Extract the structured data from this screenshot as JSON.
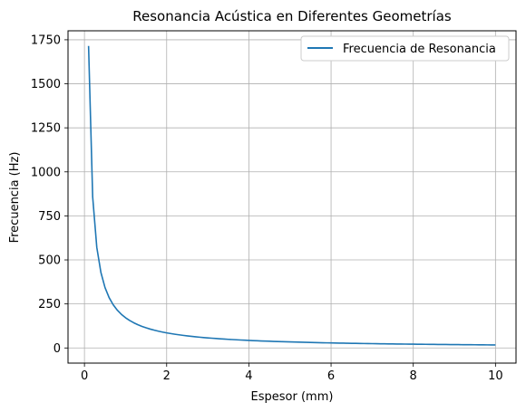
{
  "chart_data": {
    "type": "line",
    "title": "Resonancia Acústica en Diferentes Geometrías",
    "xlabel": "Espesor (mm)",
    "ylabel": "Frecuencia (Hz)",
    "xlim": [
      -0.4,
      10.5
    ],
    "ylim": [
      -86,
      1801
    ],
    "xticks": [
      0,
      2,
      4,
      6,
      8,
      10
    ],
    "yticks": [
      0,
      250,
      500,
      750,
      1000,
      1250,
      1500,
      1750
    ],
    "grid": true,
    "legend_position": "top-right",
    "series": [
      {
        "name": "Frecuencia de Resonancia",
        "color": "#1f77b4",
        "formula_note_k": 171.5,
        "x_start": 0.1,
        "x_end": 10,
        "num_points": 100
      }
    ]
  }
}
